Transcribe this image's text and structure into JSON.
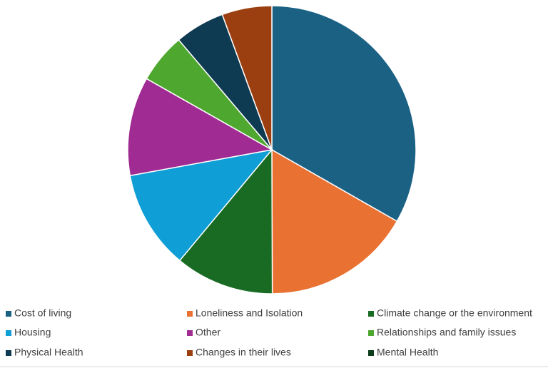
{
  "chart_data": {
    "type": "pie",
    "categories": [
      "Cost of living",
      "Loneliness and Isolation",
      "Climate change or the environment",
      "Housing",
      "Other",
      "Relationships and family issues",
      "Physical Health",
      "Changes in their lives",
      "Mental Health"
    ],
    "values": [
      33.3,
      16.7,
      11.1,
      11.1,
      11.1,
      5.6,
      5.6,
      5.6,
      0
    ],
    "colors": [
      "#1a6184",
      "#e97132",
      "#196b24",
      "#0f9ed5",
      "#a02b93",
      "#4ea72e",
      "#0e3a52",
      "#9c3f10",
      "#0c3d1b"
    ],
    "legend": "bottom"
  }
}
